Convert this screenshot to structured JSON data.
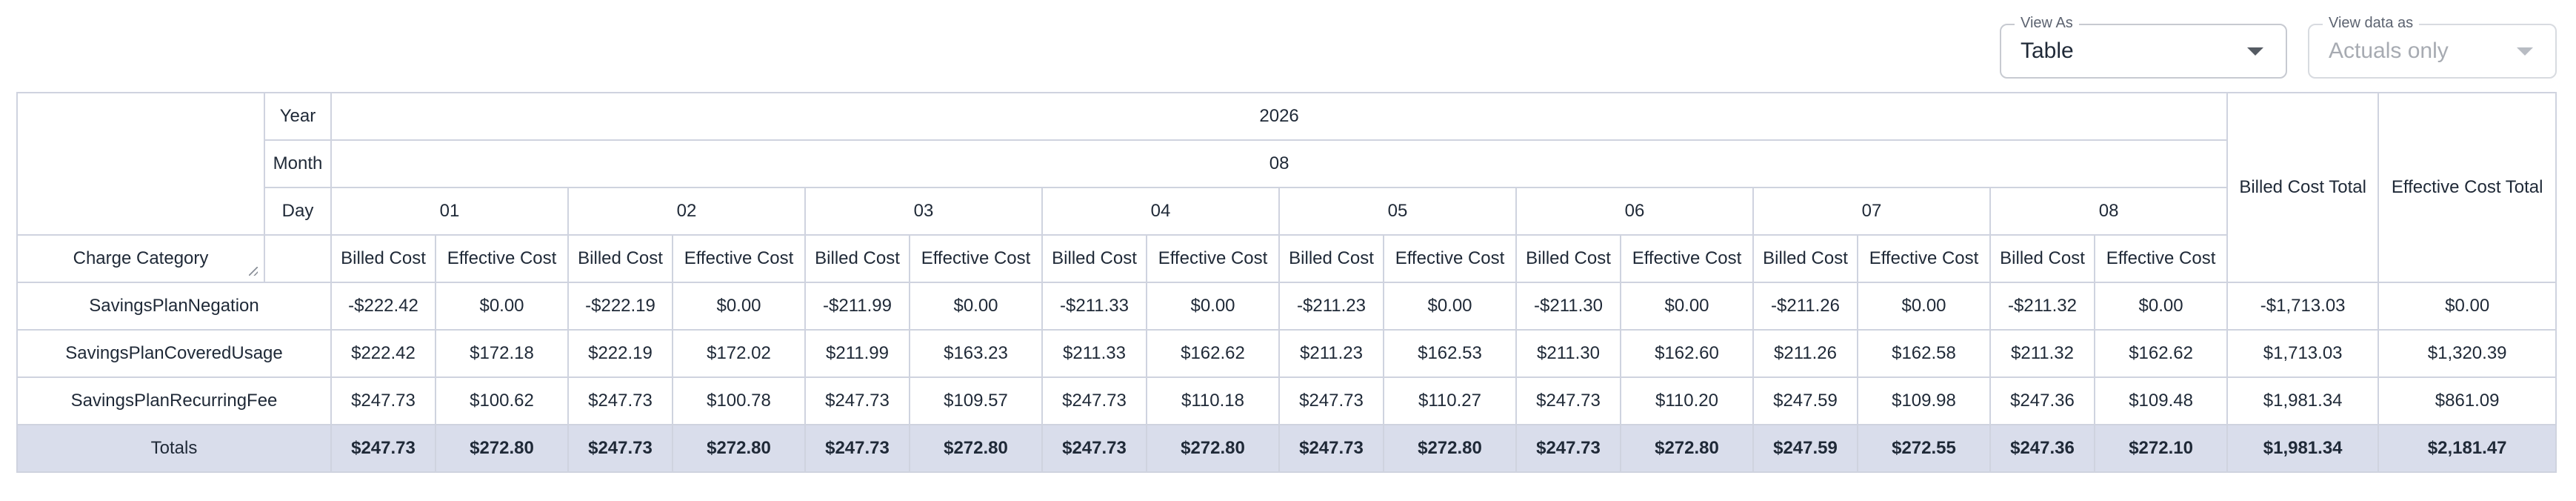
{
  "controls": {
    "view_as": {
      "label": "View As",
      "value": "Table"
    },
    "view_data": {
      "label": "View data as",
      "value": "Actuals only"
    }
  },
  "headers": {
    "year_label": "Year",
    "month_label": "Month",
    "day_label": "Day",
    "charge_category_label": "Charge Category",
    "year": "2026",
    "month": "08",
    "days": [
      "01",
      "02",
      "03",
      "04",
      "05",
      "06",
      "07",
      "08"
    ],
    "metric_billed": "Billed Cost",
    "metric_effective": "Effective Cost",
    "billed_total": "Billed Cost Total",
    "effective_total": "Effective Cost Total"
  },
  "rows": [
    {
      "name": "SavingsPlanNegation",
      "cells": [
        "-$222.42",
        "$0.00",
        "-$222.19",
        "$0.00",
        "-$211.99",
        "$0.00",
        "-$211.33",
        "$0.00",
        "-$211.23",
        "$0.00",
        "-$211.30",
        "$0.00",
        "-$211.26",
        "$0.00",
        "-$211.32",
        "$0.00"
      ],
      "billed_total": "-$1,713.03",
      "effective_total": "$0.00"
    },
    {
      "name": "SavingsPlanCoveredUsage",
      "cells": [
        "$222.42",
        "$172.18",
        "$222.19",
        "$172.02",
        "$211.99",
        "$163.23",
        "$211.33",
        "$162.62",
        "$211.23",
        "$162.53",
        "$211.30",
        "$162.60",
        "$211.26",
        "$162.58",
        "$211.32",
        "$162.62"
      ],
      "billed_total": "$1,713.03",
      "effective_total": "$1,320.39"
    },
    {
      "name": "SavingsPlanRecurringFee",
      "cells": [
        "$247.73",
        "$100.62",
        "$247.73",
        "$100.78",
        "$247.73",
        "$109.57",
        "$247.73",
        "$110.18",
        "$247.73",
        "$110.27",
        "$247.73",
        "$110.20",
        "$247.59",
        "$109.98",
        "$247.36",
        "$109.48"
      ],
      "billed_total": "$1,981.34",
      "effective_total": "$861.09"
    }
  ],
  "totals": {
    "label": "Totals",
    "cells": [
      "$247.73",
      "$272.80",
      "$247.73",
      "$272.80",
      "$247.73",
      "$272.80",
      "$247.73",
      "$272.80",
      "$247.73",
      "$272.80",
      "$247.73",
      "$272.80",
      "$247.59",
      "$272.55",
      "$247.36",
      "$272.10"
    ],
    "billed_total": "$1,981.34",
    "effective_total": "$2,181.47"
  }
}
